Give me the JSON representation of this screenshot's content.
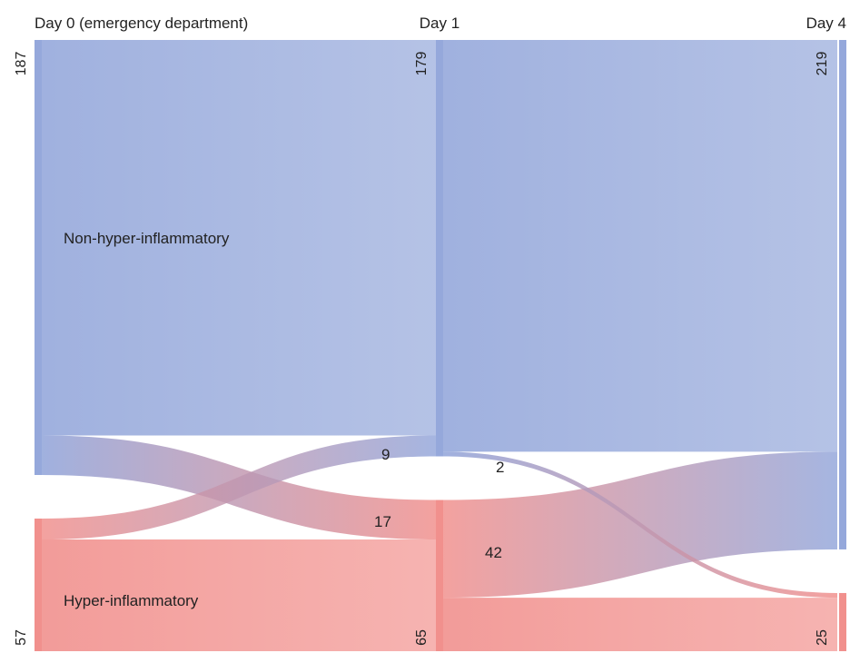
{
  "stages": [
    {
      "id": "d0",
      "title": "Day 0 (emergency department)"
    },
    {
      "id": "d1",
      "title": "Day 1"
    },
    {
      "id": "d4",
      "title": "Day 4"
    }
  ],
  "classes": {
    "non": {
      "label": "Non-hyper-inflammatory",
      "color": "#8fa3d9"
    },
    "hyper": {
      "label": "Hyper-inflammatory",
      "color": "#f08a87"
    }
  },
  "node_counts": {
    "d0_non": "187",
    "d0_hyper": "57",
    "d1_non": "179",
    "d1_hyper": "65",
    "d4_non": "219",
    "d4_hyper": "25"
  },
  "flows": [
    {
      "from": "d0_non",
      "to": "d1_non",
      "value": 170,
      "label": ""
    },
    {
      "from": "d0_non",
      "to": "d1_hyper",
      "value": 17,
      "label": "17"
    },
    {
      "from": "d0_hyper",
      "to": "d1_non",
      "value": 9,
      "label": "9"
    },
    {
      "from": "d0_hyper",
      "to": "d1_hyper",
      "value": 48,
      "label": ""
    },
    {
      "from": "d1_non",
      "to": "d4_non",
      "value": 177,
      "label": ""
    },
    {
      "from": "d1_non",
      "to": "d4_hyper",
      "value": 2,
      "label": "2"
    },
    {
      "from": "d1_hyper",
      "to": "d4_non",
      "value": 42,
      "label": "42"
    },
    {
      "from": "d1_hyper",
      "to": "d4_hyper",
      "value": 23,
      "label": ""
    }
  ]
}
